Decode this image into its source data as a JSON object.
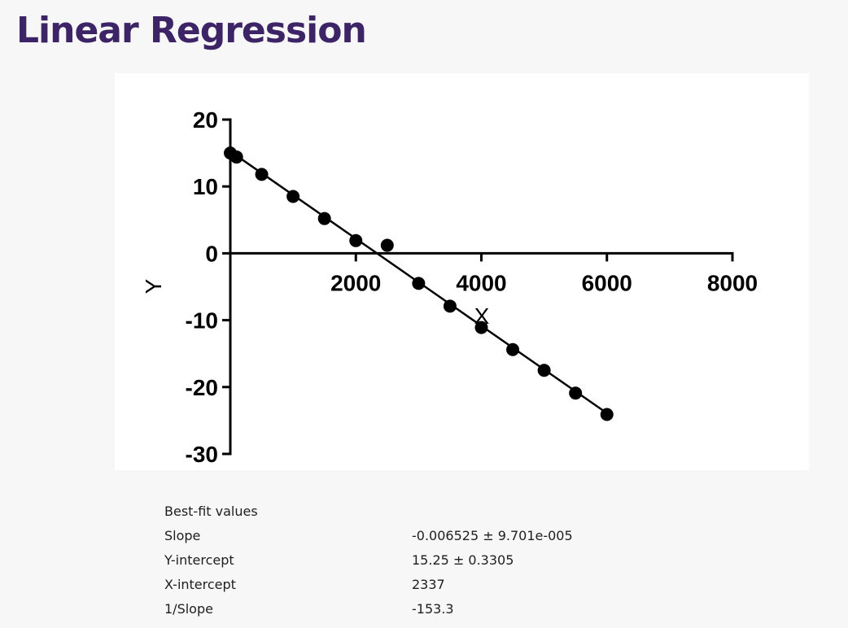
{
  "page": {
    "title": "Linear Regression"
  },
  "chart_data": {
    "type": "scatter",
    "xlabel": "X",
    "ylabel": "Y",
    "xlim": [
      0,
      8000
    ],
    "ylim": [
      -30,
      20
    ],
    "x_ticks": [
      2000,
      4000,
      6000,
      8000
    ],
    "y_ticks": [
      20,
      10,
      0,
      -10,
      -20,
      -30
    ],
    "grid": false,
    "points": [
      {
        "x": 0,
        "y": 15.0
      },
      {
        "x": 100,
        "y": 14.4
      },
      {
        "x": 500,
        "y": 11.8
      },
      {
        "x": 1000,
        "y": 8.5
      },
      {
        "x": 1500,
        "y": 5.2
      },
      {
        "x": 2000,
        "y": 1.9
      },
      {
        "x": 2500,
        "y": 1.2
      },
      {
        "x": 3000,
        "y": -4.5
      },
      {
        "x": 3500,
        "y": -7.9
      },
      {
        "x": 4000,
        "y": -11.1
      },
      {
        "x": 4500,
        "y": -14.4
      },
      {
        "x": 5000,
        "y": -17.5
      },
      {
        "x": 5500,
        "y": -20.9
      },
      {
        "x": 6000,
        "y": -24.1
      }
    ],
    "fit_line": {
      "slope": -0.006525,
      "intercept": 15.25,
      "x_start": 0,
      "x_end": 6000
    },
    "colors": {
      "marker": "#000000",
      "line": "#000000"
    }
  },
  "stats": {
    "header": "Best-fit values",
    "rows": [
      {
        "label": "Slope",
        "value": "-0.006525 ± 9.701e-005"
      },
      {
        "label": "Y-intercept",
        "value": "15.25 ± 0.3305"
      },
      {
        "label": "X-intercept",
        "value": "2337"
      },
      {
        "label": "1/Slope",
        "value": "-153.3"
      }
    ]
  }
}
